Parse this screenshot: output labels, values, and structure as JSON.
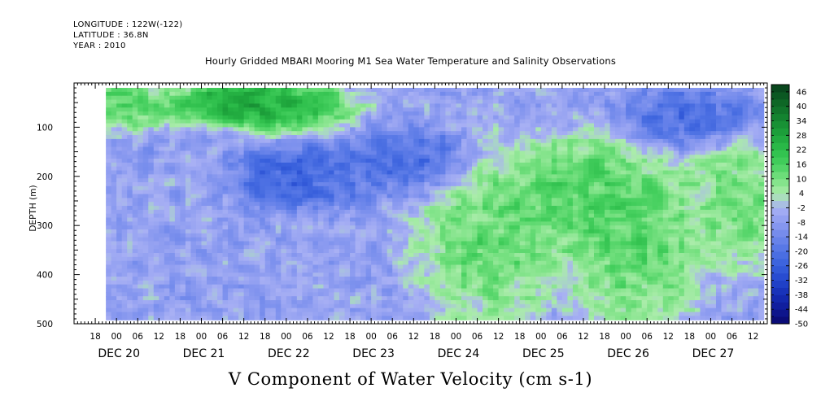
{
  "header": {
    "longitude": "LONGITUDE : 122W(-122)",
    "latitude": "LATITUDE : 36.8N",
    "year": "YEAR : 2010"
  },
  "title": "Hourly Gridded MBARI Mooring M1 Sea Water Temperature and Salinity Observations",
  "bottom_label": "V Component of Water Velocity (cm s-1)",
  "chart_data": {
    "type": "heatmap",
    "ylabel": "DEPTH (m)",
    "y_axis": {
      "range": [
        500,
        10
      ],
      "ticks": [
        100,
        200,
        300,
        400,
        500
      ],
      "inverted": true
    },
    "x_axis": {
      "range_hours": [
        "DEC 19 12:00",
        "DEC 27 16:00"
      ],
      "hour_ticks": [
        "18",
        "00",
        "06",
        "12",
        "18",
        "00",
        "06",
        "12",
        "18",
        "00",
        "06",
        "12",
        "18",
        "00",
        "06",
        "12",
        "18",
        "00",
        "06",
        "12",
        "18",
        "00",
        "06",
        "12",
        "18",
        "00",
        "06",
        "12",
        "18",
        "00",
        "06",
        "12"
      ],
      "day_labels": [
        "DEC 20",
        "DEC 21",
        "DEC 22",
        "DEC 23",
        "DEC 24",
        "DEC 25",
        "DEC 26",
        "DEC 27"
      ]
    },
    "data_extent": {
      "depth_range": [
        20,
        485
      ],
      "time_start": "DEC 19 21:00",
      "time_end": "DEC 27 15:00"
    },
    "colorbar": {
      "tick_labels": [
        "46",
        "40",
        "34",
        "28",
        "22",
        "16",
        "10",
        "4",
        "-2",
        "-8",
        "-14",
        "-20",
        "-26",
        "-32",
        "-38",
        "-44",
        "-50"
      ],
      "range": [
        -50,
        49
      ]
    },
    "colors": {
      "strong_negative": "#0d1a9a",
      "negative": "#4a63dd",
      "weak_negative": "#a3acf0",
      "weak_positive": "#a0eba0",
      "positive": "#2ec247",
      "strong_positive": "#0b4f1e"
    },
    "field_description": "v-velocity (cm/s) by time and depth; positive (green) near surface DEC 20-23, negative (blue) mid-depth DEC 21-23, positive columns DEC 23-27 at depth",
    "features": [
      {
        "time": "DEC 20 00:00",
        "depth_range": [
          20,
          90
        ],
        "value": 20
      },
      {
        "time": "DEC 21 12:00",
        "depth_range": [
          20,
          80
        ],
        "value": 40
      },
      {
        "time": "DEC 22 00:00",
        "depth_range": [
          20,
          100
        ],
        "value": 26
      },
      {
        "time": "DEC 22 03:00",
        "depth_range": [
          150,
          250
        ],
        "value": -28
      },
      {
        "time": "DEC 23 12:00",
        "depth_range": [
          120,
          220
        ],
        "value": -26
      },
      {
        "time": "DEC 24 09:00",
        "depth_range": [
          180,
          450
        ],
        "value": 18
      },
      {
        "time": "DEC 25 12:00",
        "depth_range": [
          150,
          330
        ],
        "value": 20
      },
      {
        "time": "DEC 26 03:00",
        "depth_range": [
          200,
          480
        ],
        "value": 18
      },
      {
        "time": "DEC 26 18:00",
        "depth_range": [
          40,
          130
        ],
        "value": -26
      },
      {
        "time": "DEC 27 09:00",
        "depth_range": [
          150,
          350
        ],
        "value": 14
      }
    ]
  }
}
